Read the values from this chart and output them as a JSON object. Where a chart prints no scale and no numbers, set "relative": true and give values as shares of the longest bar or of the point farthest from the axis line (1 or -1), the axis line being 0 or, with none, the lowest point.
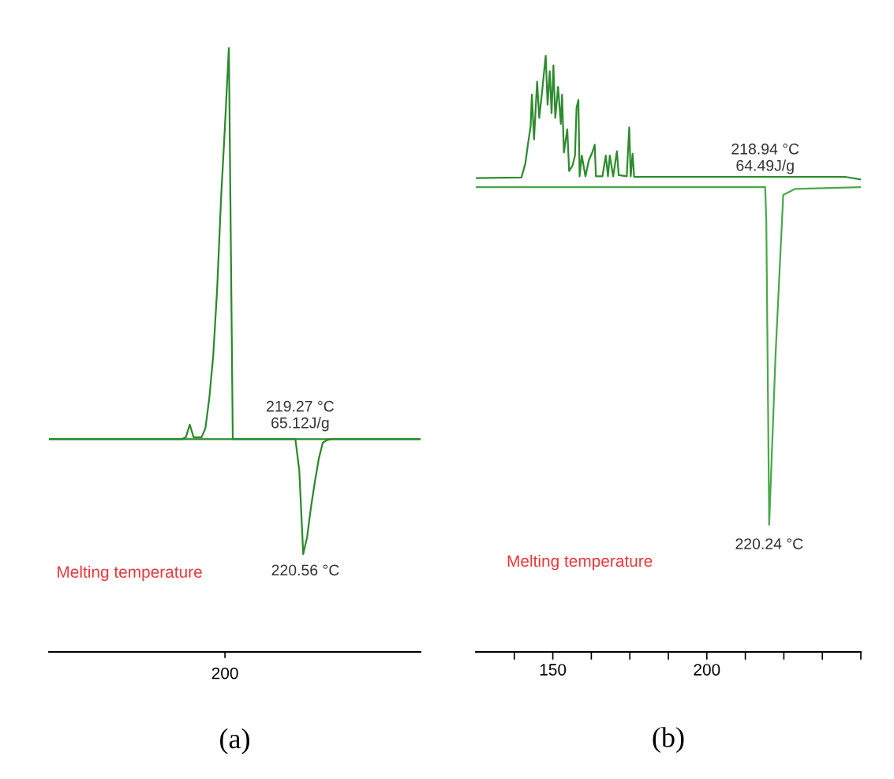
{
  "chart_data": [
    {
      "type": "line",
      "title": "(a)",
      "relative": true,
      "tick_labels": "x",
      "grid": false,
      "legend": false,
      "categories": [
        null,
        null,
        null,
        null,
        null,
        null,
        null,
        null,
        null,
        null,
        null,
        null,
        null,
        null,
        null,
        null,
        null,
        null,
        null,
        null,
        null,
        null,
        null,
        null,
        null,
        null,
        null,
        null,
        null,
        null,
        null,
        null,
        null,
        null,
        null,
        null,
        null,
        null,
        null,
        null,
        null,
        null,
        null,
        null,
        null,
        null,
        null,
        null,
        null,
        null,
        null,
        null,
        null,
        null,
        null,
        null,
        null,
        null,
        null,
        null,
        null,
        null,
        null,
        null,
        null,
        null,
        null,
        null,
        null,
        null,
        null,
        null,
        null,
        null,
        null,
        null,
        null,
        null,
        null,
        null,
        null,
        null,
        null,
        null,
        null,
        null,
        null,
        null,
        null,
        null,
        null,
        null,
        null,
        null,
        null,
        null
      ],
      "series": [
        {
          "color": "#2a8a2a",
          "values": [
            0.352,
            0.352,
            0.352,
            0.352,
            0.352,
            0.352,
            0.352,
            0.352,
            0.352,
            0.352,
            0.352,
            0.352,
            0.352,
            0.352,
            0.352,
            0.352,
            0.352,
            0.352,
            0.352,
            0.352,
            0.352,
            0.352,
            0.352,
            0.352,
            0.352,
            0.352,
            0.352,
            0.352,
            0.352,
            0.352,
            0.352,
            0.352,
            0.352,
            0.352,
            0.352,
            0.352,
            0.352,
            0.352,
            0.352,
            0.352,
            0.352,
            0.352,
            0.352,
            0.352,
            0.352,
            0.352,
            0.352,
            0.352,
            0.352,
            0.352,
            0.352,
            0.352,
            0.352,
            0.352,
            0.352,
            0.352,
            0.352,
            0.352,
            0.352,
            0.352,
            0.352,
            0.352,
            0.352,
            0.352,
            0.3,
            0.162,
            0.19,
            0.24,
            0.282,
            0.32,
            0.346,
            0.35,
            0.352,
            0.352,
            0.352,
            0.352,
            0.352,
            0.352,
            0.352,
            0.352,
            0.352,
            0.352,
            0.352,
            0.352,
            0.352,
            0.352,
            0.352,
            0.352,
            0.352,
            0.352,
            0.352,
            0.352,
            0.352,
            0.352,
            0.352,
            0.352
          ]
        },
        {
          "color": "#2a8a2a",
          "values": [
            0.352,
            0.352,
            0.352,
            0.352,
            0.352,
            0.352,
            0.352,
            0.352,
            0.352,
            0.352,
            0.352,
            0.352,
            0.352,
            0.352,
            0.352,
            0.352,
            0.352,
            0.352,
            0.352,
            0.352,
            0.352,
            0.352,
            0.352,
            0.352,
            0.352,
            0.352,
            0.352,
            0.352,
            0.352,
            0.352,
            0.352,
            0.352,
            0.352,
            0.352,
            0.352,
            0.355,
            0.376,
            0.355,
            0.355,
            0.355,
            0.37,
            0.42,
            0.49,
            0.6,
            0.75,
            0.87,
            1.0,
            0.352,
            0.352,
            0.352,
            0.352,
            0.352,
            0.352,
            0.352,
            0.352,
            0.352,
            0.352,
            0.352,
            0.352,
            0.352,
            0.352,
            0.352,
            0.352,
            0.352,
            0.352,
            0.352,
            0.352,
            0.352,
            0.352,
            0.352,
            0.352,
            0.352,
            0.352,
            0.352,
            0.352,
            0.352,
            0.352,
            0.352,
            0.352,
            0.352,
            0.352,
            0.352,
            0.352,
            0.352,
            0.352,
            0.352,
            0.352,
            0.352,
            0.352,
            0.352,
            0.352,
            0.352,
            0.352,
            0.352,
            0.352,
            0.352
          ]
        }
      ],
      "annotations": [
        "219.27 °C\n65.12J/g",
        "220.56 °C",
        "Melting temperature",
        "200"
      ]
    },
    {
      "type": "line",
      "title": "(b)",
      "relative": true,
      "tick_labels": "x",
      "grid": false,
      "legend": false,
      "xlim": [
        125,
        250
      ],
      "xticks": [
        {
          "value": 137.5,
          "label": null
        },
        150,
        {
          "value": 162.5,
          "label": null
        },
        {
          "value": 175,
          "label": null
        },
        {
          "value": 187.5,
          "label": null
        },
        200,
        {
          "value": 212.5,
          "label": null
        },
        {
          "value": 225,
          "label": null
        },
        {
          "value": 237.5,
          "label": null
        },
        {
          "value": 250,
          "label": null
        }
      ],
      "series": [
        {
          "color": "#2e8b2e",
          "x": [
            125.3,
            139.8,
            141.1,
            141.9,
            142.8,
            143.2,
            143.9,
            144.9,
            145.6,
            146.6,
            147.7,
            148.3,
            149.0,
            149.6,
            150.2,
            150.8,
            151.7,
            152.6,
            153.0,
            153.6,
            154.7,
            155.3,
            156.4,
            157.2,
            157.7,
            158.3,
            158.7,
            159.4,
            160.6,
            161.7,
            162.8,
            163.6,
            164.0,
            166.1,
            167.2,
            167.9,
            168.5,
            169.6,
            170.8,
            171.4,
            174.0,
            174.8,
            175.3,
            175.9,
            176.4,
            245.2,
            249.8
          ],
          "values": [
            0.794,
            0.795,
            0.819,
            0.85,
            0.881,
            0.934,
            0.859,
            0.956,
            0.895,
            0.943,
            1.0,
            0.917,
            0.973,
            0.903,
            0.983,
            0.895,
            0.947,
            0.885,
            0.934,
            0.837,
            0.876,
            0.806,
            0.815,
            0.832,
            0.912,
            0.925,
            0.797,
            0.832,
            0.797,
            0.824,
            0.837,
            0.85,
            0.797,
            0.797,
            0.832,
            0.797,
            0.832,
            0.797,
            0.839,
            0.799,
            0.797,
            0.879,
            0.797,
            0.835,
            0.796,
            0.796,
            0.792
          ]
        },
        {
          "color": "#4aa84a",
          "x": [
            125.3,
            218.94,
            219.3,
            220.24,
            222.3,
            224.8,
            228.7,
            249.8
          ],
          "values": [
            0.779,
            0.779,
            0.722,
            0.213,
            0.497,
            0.766,
            0.776,
            0.779
          ]
        }
      ],
      "annotations": [
        {
          "text": "218.94 °C\n64.49J/g",
          "x": 218.94,
          "y": 0.779
        },
        {
          "text": "220.24 °C",
          "x": 220.24,
          "y": 0.213
        },
        "Melting temperature"
      ]
    }
  ]
}
